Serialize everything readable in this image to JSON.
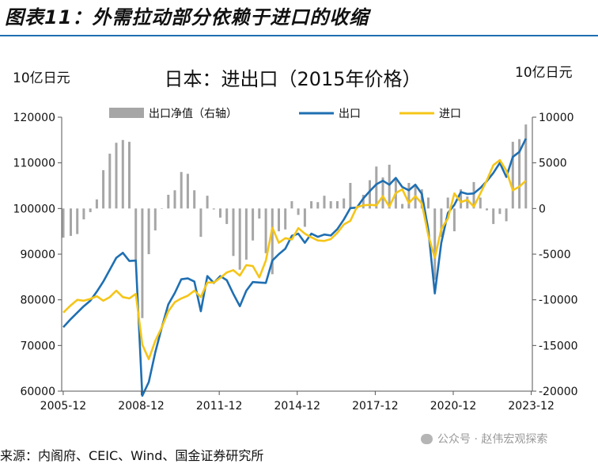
{
  "figure_title": "图表11：外需拉动部分依赖于进口的收缩",
  "source": "来源：内阁府、CEIC、Wind、国金证券研究所",
  "watermark": "公众号 · 赵伟宏观探索",
  "colors": {
    "export": "#1f6fb2",
    "import": "#f5c518",
    "net": "#a6a6a6",
    "title_rule": "#1f6fb2"
  },
  "chart_data": {
    "type": "line",
    "title": "日本：进出口（2015年价格）",
    "left_axis_unit": "10亿日元",
    "right_axis_unit": "10亿日元",
    "x_tick_labels": [
      "2005-12",
      "2008-12",
      "2011-12",
      "2014-12",
      "2017-12",
      "2020-12",
      "2023-12"
    ],
    "xlim": [
      2005.9,
      2024.0
    ],
    "ylim_left": [
      60000,
      120000
    ],
    "yticks_left": [
      "60000",
      "70000",
      "80000",
      "90000",
      "100000",
      "110000",
      "120000"
    ],
    "ylim_right": [
      -20000,
      10000
    ],
    "yticks_right": [
      "-20000",
      "-15000",
      "-10000",
      "-5000",
      "0",
      "5000",
      "10000"
    ],
    "legend": [
      "出口净值（右轴）",
      "出口",
      "进口"
    ],
    "legend_position": "top",
    "grid": false,
    "series": [
      {
        "name": "出口",
        "axis": "left",
        "style": "line",
        "x": [
          2005.96,
          2006.25,
          2006.5,
          2006.75,
          2007,
          2007.25,
          2007.5,
          2007.75,
          2008,
          2008.25,
          2008.5,
          2008.75,
          2009,
          2009.25,
          2009.5,
          2009.75,
          2010,
          2010.25,
          2010.5,
          2010.75,
          2011,
          2011.25,
          2011.5,
          2011.75,
          2012,
          2012.25,
          2012.5,
          2012.75,
          2013,
          2013.25,
          2013.5,
          2013.75,
          2014,
          2014.25,
          2014.5,
          2014.75,
          2015,
          2015.25,
          2015.5,
          2015.75,
          2016,
          2016.25,
          2016.5,
          2016.75,
          2017,
          2017.25,
          2017.5,
          2017.75,
          2018,
          2018.25,
          2018.5,
          2018.75,
          2019,
          2019.25,
          2019.5,
          2019.75,
          2020,
          2020.25,
          2020.5,
          2020.75,
          2021,
          2021.25,
          2021.5,
          2021.75,
          2022,
          2022.25,
          2022.5,
          2022.75,
          2023,
          2023.25,
          2023.5,
          2023.75
        ],
        "values": [
          74000,
          75800,
          77200,
          78600,
          79800,
          81800,
          84000,
          86600,
          89200,
          90300,
          88500,
          88600,
          59000,
          62000,
          68500,
          74000,
          79000,
          81500,
          84500,
          84700,
          84000,
          77500,
          85200,
          83700,
          85200,
          84300,
          81300,
          78600,
          82000,
          83900,
          83800,
          83700,
          88600,
          90000,
          91200,
          94000,
          94500,
          92500,
          94500,
          93800,
          94300,
          94100,
          95500,
          97600,
          100100,
          100200,
          102200,
          103800,
          105300,
          106100,
          105200,
          106700,
          104700,
          104000,
          105200,
          103200,
          95300,
          81400,
          92500,
          99000,
          100800,
          103600,
          103200,
          103300,
          104500,
          106000,
          107800,
          110000,
          106900,
          111300,
          112400,
          115300
        ]
      },
      {
        "name": "进口",
        "axis": "left",
        "style": "line",
        "x": [
          2005.96,
          2006.25,
          2006.5,
          2006.75,
          2007,
          2007.25,
          2007.5,
          2007.75,
          2008,
          2008.25,
          2008.5,
          2008.75,
          2009,
          2009.25,
          2009.5,
          2009.75,
          2010,
          2010.25,
          2010.5,
          2010.75,
          2011,
          2011.25,
          2011.5,
          2011.75,
          2012,
          2012.25,
          2012.5,
          2012.75,
          2013,
          2013.25,
          2013.5,
          2013.75,
          2014,
          2014.25,
          2014.5,
          2014.75,
          2015,
          2015.25,
          2015.5,
          2015.75,
          2016,
          2016.25,
          2016.5,
          2016.75,
          2017,
          2017.25,
          2017.5,
          2017.75,
          2018,
          2018.25,
          2018.5,
          2018.75,
          2019,
          2019.25,
          2019.5,
          2019.75,
          2020,
          2020.25,
          2020.5,
          2020.75,
          2021,
          2021.25,
          2021.5,
          2021.75,
          2022,
          2022.25,
          2022.5,
          2022.75,
          2023,
          2023.25,
          2023.5,
          2023.75
        ],
        "values": [
          77200,
          78800,
          80000,
          79800,
          80200,
          80800,
          79800,
          80600,
          82000,
          80600,
          80300,
          81300,
          70200,
          67000,
          71000,
          74000,
          77500,
          79500,
          80300,
          80900,
          82000,
          80600,
          83800,
          83800,
          84800,
          86000,
          86500,
          85300,
          87600,
          87400,
          84900,
          88600,
          95800,
          92500,
          93500,
          93200,
          95700,
          94500,
          93700,
          93000,
          92900,
          93300,
          94700,
          96500,
          97300,
          100300,
          100700,
          100800,
          100700,
          102700,
          100400,
          103400,
          104200,
          101200,
          102700,
          101100,
          94100,
          89200,
          95500,
          97800,
          103300,
          101400,
          101900,
          100400,
          103300,
          106200,
          109500,
          110600,
          108300,
          104000,
          104800,
          106100
        ]
      },
      {
        "name": "出口净值（右轴）",
        "axis": "right",
        "style": "bar",
        "x": [
          2005.96,
          2006.25,
          2006.5,
          2006.75,
          2007,
          2007.25,
          2007.5,
          2007.75,
          2008,
          2008.25,
          2008.5,
          2008.75,
          2009,
          2009.25,
          2009.5,
          2009.75,
          2010,
          2010.25,
          2010.5,
          2010.75,
          2011,
          2011.25,
          2011.5,
          2011.75,
          2012,
          2012.25,
          2012.5,
          2012.75,
          2013,
          2013.25,
          2013.5,
          2013.75,
          2014,
          2014.25,
          2014.5,
          2014.75,
          2015,
          2015.25,
          2015.5,
          2015.75,
          2016,
          2016.25,
          2016.5,
          2016.75,
          2017,
          2017.25,
          2017.5,
          2017.75,
          2018,
          2018.25,
          2018.5,
          2018.75,
          2019,
          2019.25,
          2019.5,
          2019.75,
          2020,
          2020.25,
          2020.5,
          2020.75,
          2021,
          2021.25,
          2021.5,
          2021.75,
          2022,
          2022.25,
          2022.5,
          2022.75,
          2023,
          2023.25,
          2023.5,
          2023.75
        ],
        "values": [
          -3200,
          -3000,
          -2800,
          -1200,
          -400,
          1000,
          4200,
          6000,
          7200,
          7500,
          7300,
          -5700,
          -12000,
          -5000,
          -2400,
          0,
          1500,
          2000,
          4000,
          3800,
          2000,
          -3100,
          1400,
          -100,
          -1000,
          -1700,
          -5200,
          -6700,
          -5600,
          -3500,
          -1100,
          -4900,
          -7200,
          -2500,
          -2300,
          800,
          -700,
          -2000,
          800,
          700,
          1400,
          800,
          800,
          1100,
          2800,
          100,
          1500,
          3100,
          4600,
          3400,
          4800,
          3300,
          500,
          2800,
          2500,
          2100,
          1200,
          -7800,
          -3100,
          1200,
          -2500,
          2100,
          1300,
          2900,
          1200,
          -200,
          -1700,
          -600,
          -1400,
          7300,
          7600,
          9200
        ]
      }
    ]
  }
}
